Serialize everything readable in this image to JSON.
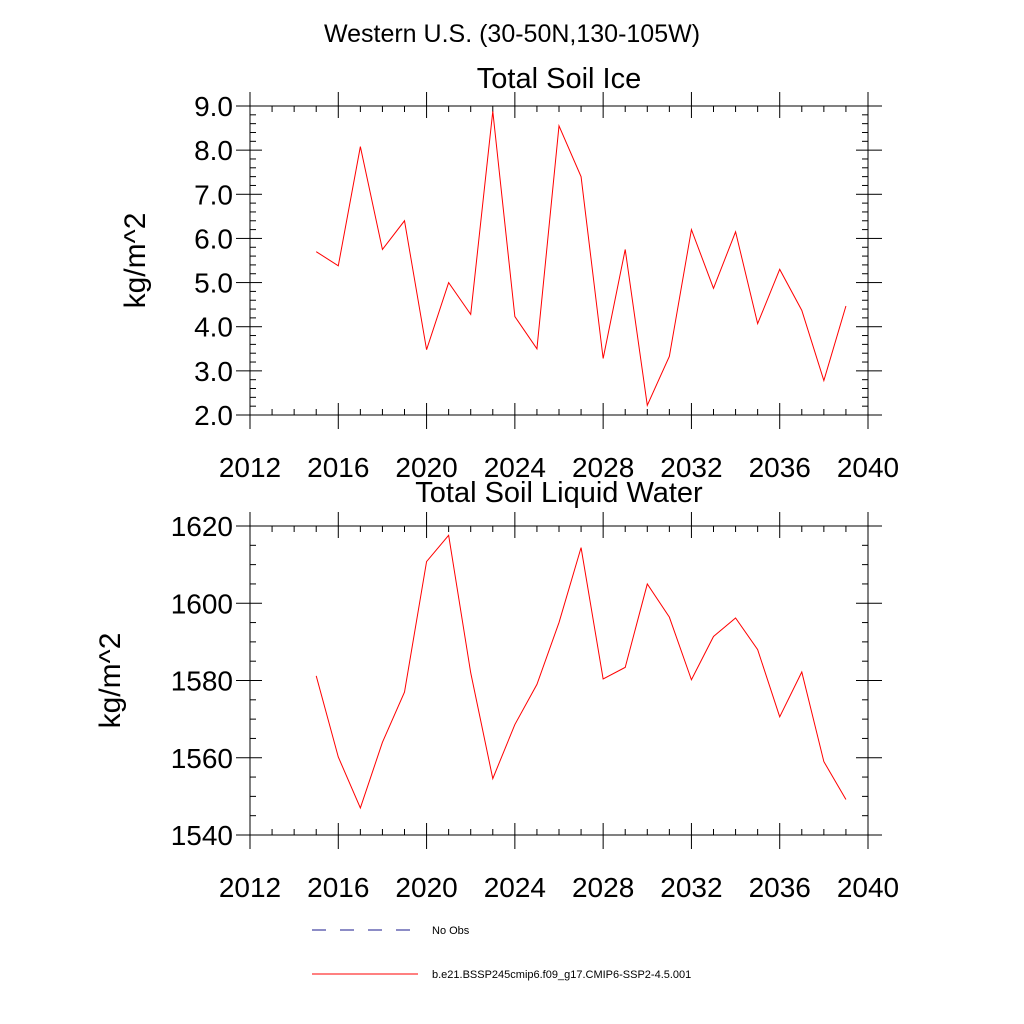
{
  "figure_title": "Western U.S. (30-50N,130-105W)",
  "colors": {
    "model": "#ff0000",
    "obs": "#1a1a8c",
    "axes": "#000000"
  },
  "legend": {
    "obs_label": "No Obs",
    "model_label": "b.e21.BSSP245cmip6.f09_g17.CMIP6-SSP2-4.5.001"
  },
  "chart_data": [
    {
      "type": "line",
      "title": "Total Soil Ice",
      "ylabel": "kg/m^2",
      "xlabel": "",
      "xlim": [
        2012,
        2040
      ],
      "ylim": [
        2.0,
        9.0
      ],
      "xticks": [
        2012,
        2016,
        2020,
        2024,
        2028,
        2032,
        2036,
        2040
      ],
      "xtick_labels": [
        "2012",
        "2016",
        "2020",
        "2024",
        "2028",
        "2032",
        "2036",
        "2040"
      ],
      "yticks": [
        2.0,
        3.0,
        4.0,
        5.0,
        6.0,
        7.0,
        8.0,
        9.0
      ],
      "ytick_labels": [
        "2.0",
        "3.0",
        "4.0",
        "5.0",
        "6.0",
        "7.0",
        "8.0",
        "9.0"
      ],
      "grid": false,
      "x": [
        2015,
        2016,
        2017,
        2018,
        2019,
        2020,
        2021,
        2022,
        2023,
        2024,
        2025,
        2026,
        2027,
        2028,
        2029,
        2030,
        2031,
        2032,
        2033,
        2034,
        2035,
        2036,
        2037,
        2038,
        2039
      ],
      "series": [
        {
          "values": [
            5.7,
            5.38,
            8.08,
            5.75,
            6.4,
            3.48,
            5.0,
            4.28,
            8.88,
            4.23,
            3.5,
            8.55,
            7.4,
            3.28,
            5.75,
            2.22,
            3.33,
            6.2,
            4.87,
            6.15,
            4.07,
            5.3,
            4.37,
            2.78,
            4.47
          ]
        }
      ]
    },
    {
      "type": "line",
      "title": "Total Soil Liquid Water",
      "ylabel": "kg/m^2",
      "xlabel": "",
      "xlim": [
        2012,
        2040
      ],
      "ylim": [
        1540,
        1620
      ],
      "xticks": [
        2012,
        2016,
        2020,
        2024,
        2028,
        2032,
        2036,
        2040
      ],
      "xtick_labels": [
        "2012",
        "2016",
        "2020",
        "2024",
        "2028",
        "2032",
        "2036",
        "2040"
      ],
      "yticks": [
        1540,
        1560,
        1580,
        1600,
        1620
      ],
      "ytick_labels": [
        "1540",
        "1560",
        "1580",
        "1600",
        "1620"
      ],
      "grid": false,
      "x": [
        2015,
        2016,
        2017,
        2018,
        2019,
        2020,
        2021,
        2022,
        2023,
        2024,
        2025,
        2026,
        2027,
        2028,
        2029,
        2030,
        2031,
        2032,
        2033,
        2034,
        2035,
        2036,
        2037,
        2038,
        2039
      ],
      "series": [
        {
          "values": [
            1581.2,
            1560.2,
            1547.0,
            1564.0,
            1577.0,
            1610.8,
            1617.6,
            1582.0,
            1554.6,
            1568.6,
            1579.0,
            1595.0,
            1614.4,
            1580.4,
            1583.4,
            1605.0,
            1596.4,
            1580.2,
            1591.4,
            1596.2,
            1588.0,
            1570.6,
            1582.2,
            1559.0,
            1549.2
          ]
        }
      ]
    }
  ]
}
